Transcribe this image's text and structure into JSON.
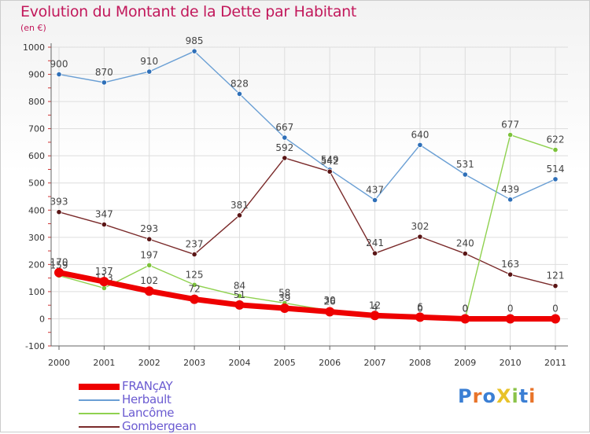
{
  "title": "Evolution du Montant de la Dette par Habitant",
  "unit": "(en €)",
  "logo": {
    "text": "ProXiti",
    "colors": [
      "#3b7fd4",
      "#e8742a",
      "#3b7fd4",
      "#e8c22a",
      "#8bc34a",
      "#3b7fd4",
      "#e8742a"
    ]
  },
  "colors": {
    "title": "#c2185b",
    "axis": "#555555",
    "grid": "#dddddd",
    "legend_text": "#6b5bd1"
  },
  "chart_data": {
    "type": "line",
    "title": "Evolution du Montant de la Dette par Habitant",
    "ylabel": "(en €)",
    "x": [
      "2000",
      "2001",
      "2002",
      "2003",
      "2004",
      "2005",
      "2006",
      "2007",
      "2008",
      "2009",
      "2010",
      "2011"
    ],
    "ylim": [
      -100,
      1000
    ],
    "yticks": [
      -100,
      0,
      100,
      200,
      300,
      400,
      500,
      600,
      700,
      800,
      900,
      1000
    ],
    "grid": true,
    "legend_position": "bottom-left",
    "series": [
      {
        "name": "Herbault",
        "color": "#6a9fd4",
        "marker": "#2e6fb8",
        "values": [
          900,
          870,
          910,
          985,
          828,
          667,
          549,
          437,
          640,
          531,
          439,
          514
        ],
        "labels": [
          "900",
          "870",
          "910",
          "985",
          "828",
          "667",
          "549",
          "437",
          "640",
          "531",
          "439",
          "514"
        ]
      },
      {
        "name": "Gombergean",
        "color": "#7a2a2a",
        "marker": "#5a1515",
        "values": [
          393,
          347,
          293,
          237,
          381,
          592,
          542,
          241,
          302,
          240,
          163,
          121
        ],
        "labels": [
          "393",
          "347",
          "293",
          "237",
          "381",
          "592",
          "542",
          "241",
          "302",
          "240",
          "163",
          "121"
        ]
      },
      {
        "name": "Lancôme",
        "color": "#8fd14f",
        "marker": "#7cc23a",
        "values": [
          159,
          113,
          197,
          125,
          84,
          58,
          30,
          4,
          0,
          0,
          677,
          622
        ],
        "labels": [
          "159",
          "113",
          "197",
          "125",
          "84",
          "58",
          "30",
          "4",
          "0",
          "0",
          "677",
          "622"
        ]
      },
      {
        "name": "FRANçAY",
        "color": "#ee0000",
        "marker": "#ee0000",
        "values": [
          170,
          137,
          102,
          72,
          51,
          39,
          26,
          12,
          6,
          0,
          0,
          0
        ],
        "labels": [
          "170",
          "137",
          "102",
          "72",
          "51",
          "39",
          "26",
          "12",
          "6",
          "0",
          "0",
          "0"
        ]
      }
    ]
  },
  "legend": [
    {
      "label": "FRANçAY",
      "color": "#ee0000",
      "thickness": 8
    },
    {
      "label": "Herbault",
      "color": "#6a9fd4",
      "thickness": 2
    },
    {
      "label": "Lancôme",
      "color": "#8fd14f",
      "thickness": 2
    },
    {
      "label": "Gombergean",
      "color": "#7a2a2a",
      "thickness": 2
    }
  ]
}
